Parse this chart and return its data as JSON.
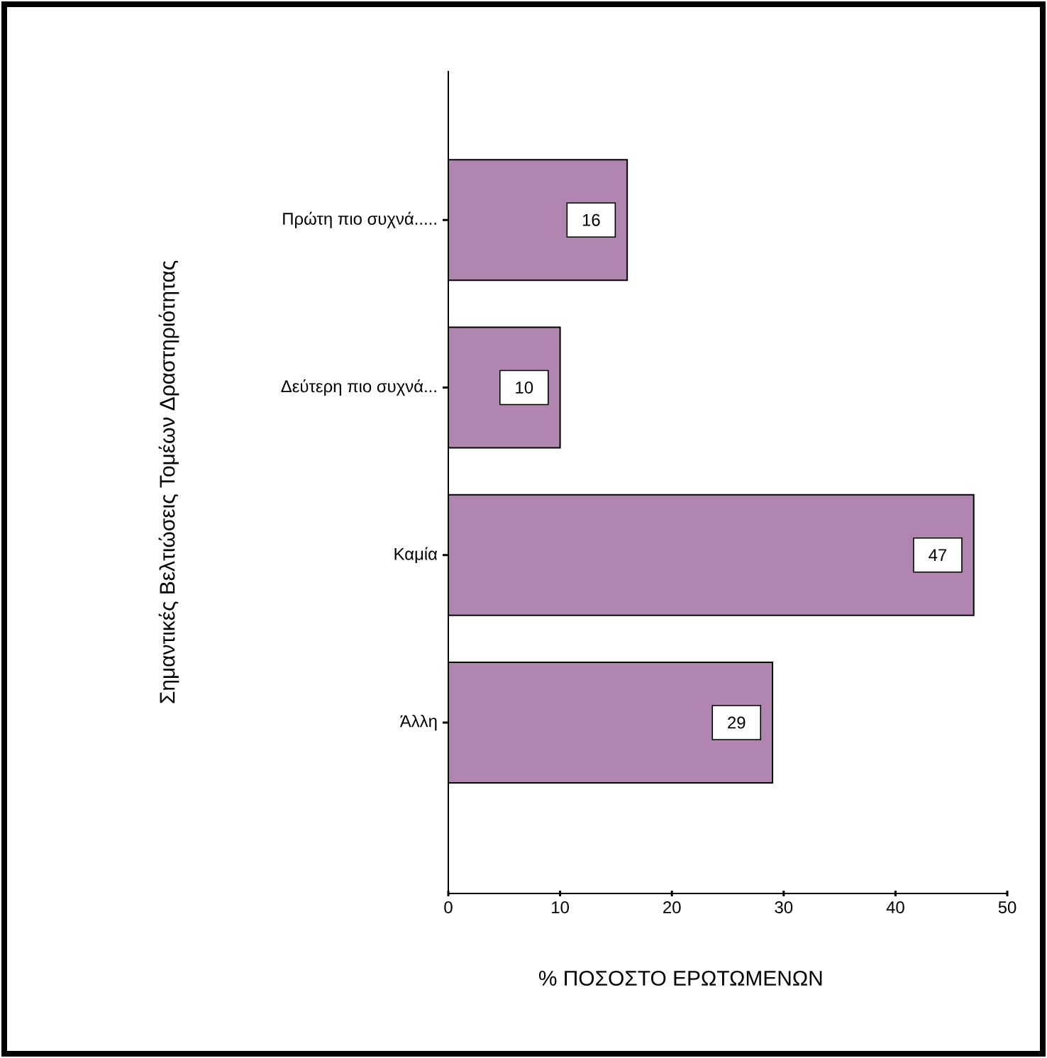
{
  "chart_data": {
    "type": "bar",
    "orientation": "horizontal",
    "xlabel": "%  ΠΟΣΟΣΤΟ ΕΡΩΤΩΜΕΝΩΝ",
    "ylabel": "Σημαντικές Βελτιώσεις Τομέων Δραστηριότητας",
    "categories": [
      "Πρώτη πιο συχνά.....",
      "Δεύτερη πιο συχνά...",
      "Καμία",
      "Άλλη"
    ],
    "values": [
      16,
      10,
      47,
      29
    ],
    "color": "#b085b0",
    "data_labels": true,
    "xlim": [
      0,
      50
    ],
    "xticks": [
      0,
      10,
      20,
      30,
      40,
      50
    ]
  }
}
